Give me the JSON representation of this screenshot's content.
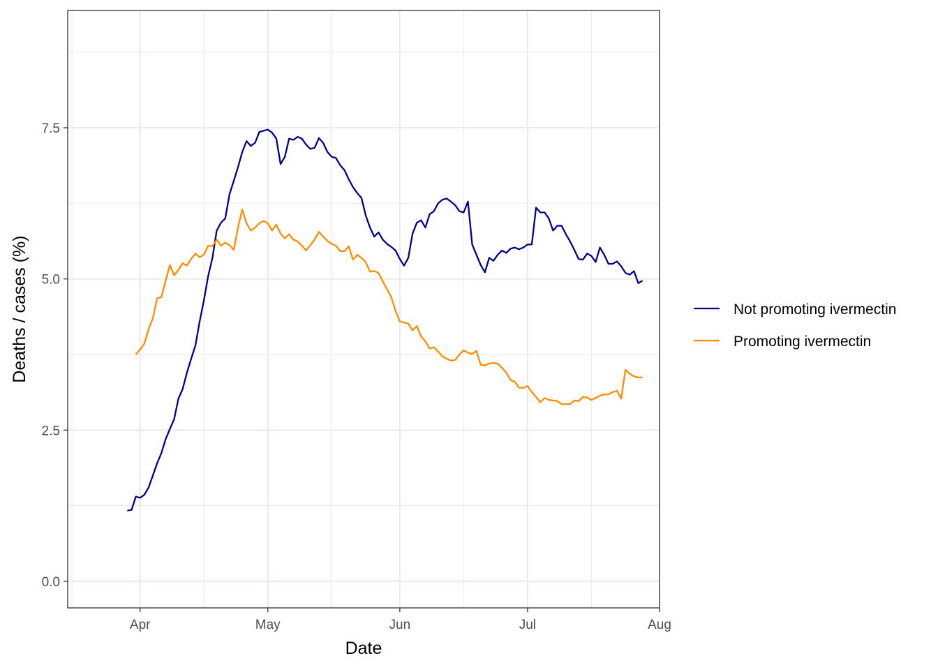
{
  "chart_data": {
    "type": "line",
    "xlabel": "Date",
    "ylabel": "Deaths / cases (%)",
    "x_axis_kind": "date",
    "xlim": [
      "2020-03-15",
      "2020-08-01"
    ],
    "ylim": [
      -0.44,
      9.44
    ],
    "x_ticks": [
      {
        "date": "2020-04-01",
        "label": "Apr"
      },
      {
        "date": "2020-05-01",
        "label": "May"
      },
      {
        "date": "2020-06-01",
        "label": "Jun"
      },
      {
        "date": "2020-07-01",
        "label": "Jul"
      },
      {
        "date": "2020-08-01",
        "label": "Aug"
      }
    ],
    "x_minor_ticks": [
      "2020-03-16",
      "2020-04-16",
      "2020-05-16",
      "2020-06-16",
      "2020-07-16"
    ],
    "y_ticks": [
      {
        "value": 0,
        "label": "0.0"
      },
      {
        "value": 2.5,
        "label": "2.5"
      },
      {
        "value": 5,
        "label": "5.0"
      },
      {
        "value": 7.5,
        "label": "7.5"
      }
    ],
    "y_minor_ticks": [
      1.25,
      3.75,
      6.25,
      8.75
    ],
    "grid": true,
    "legend_position": "right",
    "series": [
      {
        "name": "Not promoting ivermectin",
        "color": "#00008B",
        "points": [
          [
            "2020-03-29",
            1.17
          ],
          [
            "2020-03-30",
            1.18
          ],
          [
            "2020-03-31",
            1.4
          ],
          [
            "2020-04-01",
            1.38
          ],
          [
            "2020-04-02",
            1.43
          ],
          [
            "2020-04-03",
            1.55
          ],
          [
            "2020-04-04",
            1.75
          ],
          [
            "2020-04-05",
            1.95
          ],
          [
            "2020-04-06",
            2.12
          ],
          [
            "2020-04-07",
            2.35
          ],
          [
            "2020-04-08",
            2.52
          ],
          [
            "2020-04-09",
            2.68
          ],
          [
            "2020-04-10",
            3.02
          ],
          [
            "2020-04-11",
            3.18
          ],
          [
            "2020-04-12",
            3.45
          ],
          [
            "2020-04-13",
            3.68
          ],
          [
            "2020-04-14",
            3.9
          ],
          [
            "2020-04-15",
            4.3
          ],
          [
            "2020-04-16",
            4.65
          ],
          [
            "2020-04-17",
            5.05
          ],
          [
            "2020-04-18",
            5.35
          ],
          [
            "2020-04-19",
            5.8
          ],
          [
            "2020-04-20",
            5.93
          ],
          [
            "2020-04-21",
            6.0
          ],
          [
            "2020-04-22",
            6.4
          ],
          [
            "2020-04-23",
            6.62
          ],
          [
            "2020-04-24",
            6.85
          ],
          [
            "2020-04-25",
            7.1
          ],
          [
            "2020-04-26",
            7.28
          ],
          [
            "2020-04-27",
            7.2
          ],
          [
            "2020-04-28",
            7.25
          ],
          [
            "2020-04-29",
            7.43
          ],
          [
            "2020-04-30",
            7.45
          ],
          [
            "2020-05-01",
            7.47
          ],
          [
            "2020-05-02",
            7.42
          ],
          [
            "2020-05-03",
            7.32
          ],
          [
            "2020-05-04",
            6.9
          ],
          [
            "2020-05-05",
            7.02
          ],
          [
            "2020-05-06",
            7.32
          ],
          [
            "2020-05-07",
            7.3
          ],
          [
            "2020-05-08",
            7.35
          ],
          [
            "2020-05-09",
            7.32
          ],
          [
            "2020-05-10",
            7.22
          ],
          [
            "2020-05-11",
            7.15
          ],
          [
            "2020-05-12",
            7.17
          ],
          [
            "2020-05-13",
            7.33
          ],
          [
            "2020-05-14",
            7.25
          ],
          [
            "2020-05-15",
            7.1
          ],
          [
            "2020-05-16",
            7.02
          ],
          [
            "2020-05-17",
            7.0
          ],
          [
            "2020-05-18",
            6.88
          ],
          [
            "2020-05-19",
            6.8
          ],
          [
            "2020-05-20",
            6.65
          ],
          [
            "2020-05-21",
            6.52
          ],
          [
            "2020-05-22",
            6.42
          ],
          [
            "2020-05-23",
            6.34
          ],
          [
            "2020-05-24",
            6.05
          ],
          [
            "2020-05-25",
            5.85
          ],
          [
            "2020-05-26",
            5.7
          ],
          [
            "2020-05-27",
            5.77
          ],
          [
            "2020-05-28",
            5.65
          ],
          [
            "2020-05-29",
            5.58
          ],
          [
            "2020-05-30",
            5.53
          ],
          [
            "2020-05-31",
            5.47
          ],
          [
            "2020-06-01",
            5.33
          ],
          [
            "2020-06-02",
            5.22
          ],
          [
            "2020-06-03",
            5.35
          ],
          [
            "2020-06-04",
            5.75
          ],
          [
            "2020-06-05",
            5.93
          ],
          [
            "2020-06-06",
            5.97
          ],
          [
            "2020-06-07",
            5.85
          ],
          [
            "2020-06-08",
            6.07
          ],
          [
            "2020-06-09",
            6.12
          ],
          [
            "2020-06-10",
            6.25
          ],
          [
            "2020-06-11",
            6.31
          ],
          [
            "2020-06-12",
            6.33
          ],
          [
            "2020-06-13",
            6.28
          ],
          [
            "2020-06-14",
            6.22
          ],
          [
            "2020-06-15",
            6.12
          ],
          [
            "2020-06-16",
            6.1
          ],
          [
            "2020-06-17",
            6.28
          ],
          [
            "2020-06-18",
            5.57
          ],
          [
            "2020-06-19",
            5.4
          ],
          [
            "2020-06-20",
            5.23
          ],
          [
            "2020-06-21",
            5.11
          ],
          [
            "2020-06-22",
            5.35
          ],
          [
            "2020-06-23",
            5.3
          ],
          [
            "2020-06-24",
            5.4
          ],
          [
            "2020-06-25",
            5.47
          ],
          [
            "2020-06-26",
            5.43
          ],
          [
            "2020-06-27",
            5.5
          ],
          [
            "2020-06-28",
            5.52
          ],
          [
            "2020-06-29",
            5.49
          ],
          [
            "2020-06-30",
            5.52
          ],
          [
            "2020-07-01",
            5.57
          ],
          [
            "2020-07-02",
            5.57
          ],
          [
            "2020-07-03",
            6.18
          ],
          [
            "2020-07-04",
            6.1
          ],
          [
            "2020-07-05",
            6.1
          ],
          [
            "2020-07-06",
            6.0
          ],
          [
            "2020-07-07",
            5.8
          ],
          [
            "2020-07-08",
            5.88
          ],
          [
            "2020-07-09",
            5.88
          ],
          [
            "2020-07-10",
            5.74
          ],
          [
            "2020-07-11",
            5.62
          ],
          [
            "2020-07-12",
            5.48
          ],
          [
            "2020-07-13",
            5.33
          ],
          [
            "2020-07-14",
            5.32
          ],
          [
            "2020-07-15",
            5.42
          ],
          [
            "2020-07-16",
            5.38
          ],
          [
            "2020-07-17",
            5.28
          ],
          [
            "2020-07-18",
            5.52
          ],
          [
            "2020-07-19",
            5.4
          ],
          [
            "2020-07-20",
            5.25
          ],
          [
            "2020-07-21",
            5.25
          ],
          [
            "2020-07-22",
            5.29
          ],
          [
            "2020-07-23",
            5.21
          ],
          [
            "2020-07-24",
            5.1
          ],
          [
            "2020-07-25",
            5.07
          ],
          [
            "2020-07-26",
            5.13
          ],
          [
            "2020-07-27",
            4.93
          ],
          [
            "2020-07-28",
            4.97
          ]
        ]
      },
      {
        "name": "Promoting ivermectin",
        "color": "#FF8C00",
        "points": [
          [
            "2020-03-31",
            3.75
          ],
          [
            "2020-04-01",
            3.83
          ],
          [
            "2020-04-02",
            3.93
          ],
          [
            "2020-04-03",
            4.17
          ],
          [
            "2020-04-04",
            4.35
          ],
          [
            "2020-04-05",
            4.68
          ],
          [
            "2020-04-06",
            4.7
          ],
          [
            "2020-04-07",
            4.97
          ],
          [
            "2020-04-08",
            5.23
          ],
          [
            "2020-04-09",
            5.06
          ],
          [
            "2020-04-10",
            5.15
          ],
          [
            "2020-04-11",
            5.26
          ],
          [
            "2020-04-12",
            5.22
          ],
          [
            "2020-04-13",
            5.33
          ],
          [
            "2020-04-14",
            5.42
          ],
          [
            "2020-04-15",
            5.36
          ],
          [
            "2020-04-16",
            5.4
          ],
          [
            "2020-04-17",
            5.55
          ],
          [
            "2020-04-18",
            5.54
          ],
          [
            "2020-04-19",
            5.65
          ],
          [
            "2020-04-20",
            5.55
          ],
          [
            "2020-04-21",
            5.6
          ],
          [
            "2020-04-22",
            5.56
          ],
          [
            "2020-04-23",
            5.48
          ],
          [
            "2020-04-24",
            5.85
          ],
          [
            "2020-04-25",
            6.15
          ],
          [
            "2020-04-26",
            5.92
          ],
          [
            "2020-04-27",
            5.8
          ],
          [
            "2020-04-28",
            5.85
          ],
          [
            "2020-04-29",
            5.92
          ],
          [
            "2020-04-30",
            5.96
          ],
          [
            "2020-05-01",
            5.92
          ],
          [
            "2020-05-02",
            5.8
          ],
          [
            "2020-05-03",
            5.9
          ],
          [
            "2020-05-04",
            5.75
          ],
          [
            "2020-05-05",
            5.67
          ],
          [
            "2020-05-06",
            5.74
          ],
          [
            "2020-05-07",
            5.65
          ],
          [
            "2020-05-08",
            5.62
          ],
          [
            "2020-05-09",
            5.55
          ],
          [
            "2020-05-10",
            5.47
          ],
          [
            "2020-05-11",
            5.56
          ],
          [
            "2020-05-12",
            5.65
          ],
          [
            "2020-05-13",
            5.78
          ],
          [
            "2020-05-14",
            5.7
          ],
          [
            "2020-05-15",
            5.63
          ],
          [
            "2020-05-16",
            5.58
          ],
          [
            "2020-05-17",
            5.55
          ],
          [
            "2020-05-18",
            5.46
          ],
          [
            "2020-05-19",
            5.46
          ],
          [
            "2020-05-20",
            5.54
          ],
          [
            "2020-05-21",
            5.32
          ],
          [
            "2020-05-22",
            5.4
          ],
          [
            "2020-05-23",
            5.35
          ],
          [
            "2020-05-24",
            5.28
          ],
          [
            "2020-05-25",
            5.12
          ],
          [
            "2020-05-26",
            5.13
          ],
          [
            "2020-05-27",
            5.1
          ],
          [
            "2020-05-28",
            4.96
          ],
          [
            "2020-05-29",
            4.83
          ],
          [
            "2020-05-30",
            4.7
          ],
          [
            "2020-05-31",
            4.47
          ],
          [
            "2020-06-01",
            4.3
          ],
          [
            "2020-06-02",
            4.28
          ],
          [
            "2020-06-03",
            4.26
          ],
          [
            "2020-06-04",
            4.15
          ],
          [
            "2020-06-05",
            4.22
          ],
          [
            "2020-06-06",
            4.05
          ],
          [
            "2020-06-07",
            3.97
          ],
          [
            "2020-06-08",
            3.85
          ],
          [
            "2020-06-09",
            3.87
          ],
          [
            "2020-06-10",
            3.8
          ],
          [
            "2020-06-11",
            3.72
          ],
          [
            "2020-06-12",
            3.68
          ],
          [
            "2020-06-13",
            3.65
          ],
          [
            "2020-06-14",
            3.66
          ],
          [
            "2020-06-15",
            3.75
          ],
          [
            "2020-06-16",
            3.82
          ],
          [
            "2020-06-17",
            3.78
          ],
          [
            "2020-06-18",
            3.76
          ],
          [
            "2020-06-19",
            3.81
          ],
          [
            "2020-06-20",
            3.58
          ],
          [
            "2020-06-21",
            3.57
          ],
          [
            "2020-06-22",
            3.6
          ],
          [
            "2020-06-23",
            3.61
          ],
          [
            "2020-06-24",
            3.6
          ],
          [
            "2020-06-25",
            3.53
          ],
          [
            "2020-06-26",
            3.45
          ],
          [
            "2020-06-27",
            3.33
          ],
          [
            "2020-06-28",
            3.3
          ],
          [
            "2020-06-29",
            3.2
          ],
          [
            "2020-06-30",
            3.2
          ],
          [
            "2020-07-01",
            3.23
          ],
          [
            "2020-07-02",
            3.13
          ],
          [
            "2020-07-03",
            3.05
          ],
          [
            "2020-07-04",
            2.96
          ],
          [
            "2020-07-05",
            3.03
          ],
          [
            "2020-07-06",
            3.0
          ],
          [
            "2020-07-07",
            2.99
          ],
          [
            "2020-07-08",
            2.98
          ],
          [
            "2020-07-09",
            2.93
          ],
          [
            "2020-07-10",
            2.93
          ],
          [
            "2020-07-11",
            2.93
          ],
          [
            "2020-07-12",
            2.99
          ],
          [
            "2020-07-13",
            2.98
          ],
          [
            "2020-07-14",
            3.05
          ],
          [
            "2020-07-15",
            3.04
          ],
          [
            "2020-07-16",
            3.0
          ],
          [
            "2020-07-17",
            3.03
          ],
          [
            "2020-07-18",
            3.07
          ],
          [
            "2020-07-19",
            3.09
          ],
          [
            "2020-07-20",
            3.09
          ],
          [
            "2020-07-21",
            3.13
          ],
          [
            "2020-07-22",
            3.15
          ],
          [
            "2020-07-23",
            3.02
          ],
          [
            "2020-07-24",
            3.5
          ],
          [
            "2020-07-25",
            3.43
          ],
          [
            "2020-07-26",
            3.39
          ],
          [
            "2020-07-27",
            3.37
          ],
          [
            "2020-07-28",
            3.37
          ]
        ]
      }
    ]
  }
}
